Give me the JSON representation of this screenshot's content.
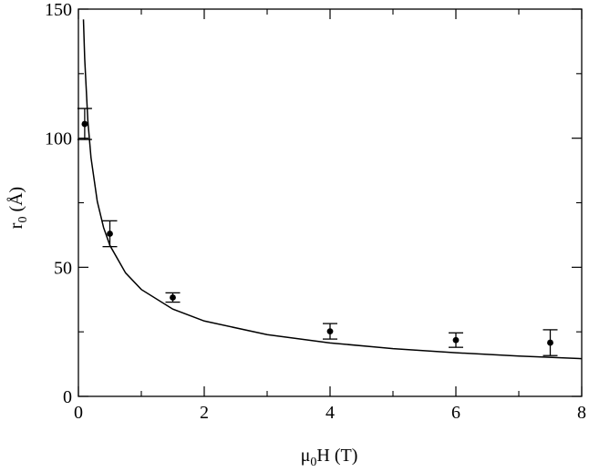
{
  "chart_data": {
    "type": "scatter",
    "xlabel": {
      "main": "μ",
      "sub": "0",
      "rest": "H (T)"
    },
    "ylabel": {
      "main": "r",
      "sub": "0",
      "rest": " (Å)"
    },
    "xlim": [
      0,
      8
    ],
    "ylim": [
      0,
      150
    ],
    "x_ticks": [
      0,
      2,
      4,
      6,
      8
    ],
    "y_ticks": [
      0,
      50,
      100,
      150
    ],
    "x_tick_labels": [
      "0",
      "2",
      "4",
      "6",
      "8"
    ],
    "y_tick_labels": [
      "0",
      "50",
      "100",
      "150"
    ],
    "grid": false,
    "series": [
      {
        "kind": "points-with-error-bars",
        "x": [
          0.1,
          0.5,
          1.5,
          4.0,
          6.0,
          7.5
        ],
        "y": [
          105.5,
          63.0,
          38.3,
          25.2,
          21.8,
          20.8
        ],
        "yerr_low": [
          6.0,
          5.0,
          1.8,
          3.0,
          2.8,
          5.0
        ],
        "yerr_high": [
          6.0,
          5.0,
          1.8,
          3.0,
          2.8,
          5.0
        ]
      },
      {
        "kind": "fit-curve",
        "x": [
          0.08,
          0.1,
          0.15,
          0.2,
          0.3,
          0.4,
          0.5,
          0.75,
          1.0,
          1.5,
          2.0,
          3.0,
          4.0,
          5.0,
          6.0,
          7.0,
          8.0
        ],
        "y": [
          146.0,
          130.8,
          106.8,
          92.5,
          75.5,
          65.4,
          58.5,
          47.8,
          41.4,
          33.8,
          29.2,
          23.9,
          20.7,
          18.5,
          16.9,
          15.6,
          14.6
        ]
      }
    ],
    "colors": {
      "ink": "#000000"
    }
  }
}
